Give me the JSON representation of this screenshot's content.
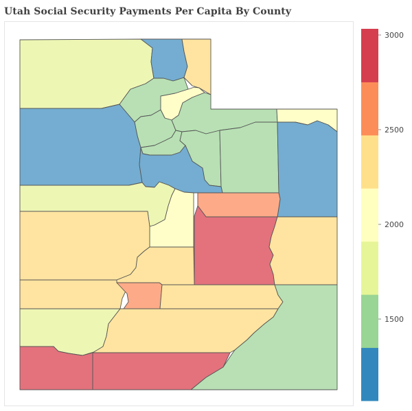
{
  "title": "Utah Social Security Payments Per Capita By County",
  "legend": {
    "bands": [
      {
        "range": [
          1000,
          1250
        ],
        "color": "#3288bd"
      },
      {
        "range": [
          1250,
          1500
        ],
        "color": "#99d594"
      },
      {
        "range": [
          1500,
          1750
        ],
        "color": "#e6f598"
      },
      {
        "range": [
          1750,
          2000
        ],
        "color": "#ffffbf"
      },
      {
        "range": [
          2000,
          2250
        ],
        "color": "#fee08b"
      },
      {
        "range": [
          2250,
          2500
        ],
        "color": "#fee08b"
      },
      {
        "range": [
          2500,
          2750
        ],
        "color": "#fc8d59"
      },
      {
        "range": [
          2750,
          3000
        ],
        "color": "#d53e4f"
      }
    ],
    "ticks": [
      "1500",
      "2000",
      "2500",
      "3000"
    ]
  },
  "map_colors": {
    "blue": "#74add1",
    "green": "#b8e0b4",
    "lightgreen": "#eef6b4",
    "yellow": "#fffec8",
    "tan": "#fee4a0",
    "salmon": "#fcaa88",
    "red": "#e3727d"
  }
}
